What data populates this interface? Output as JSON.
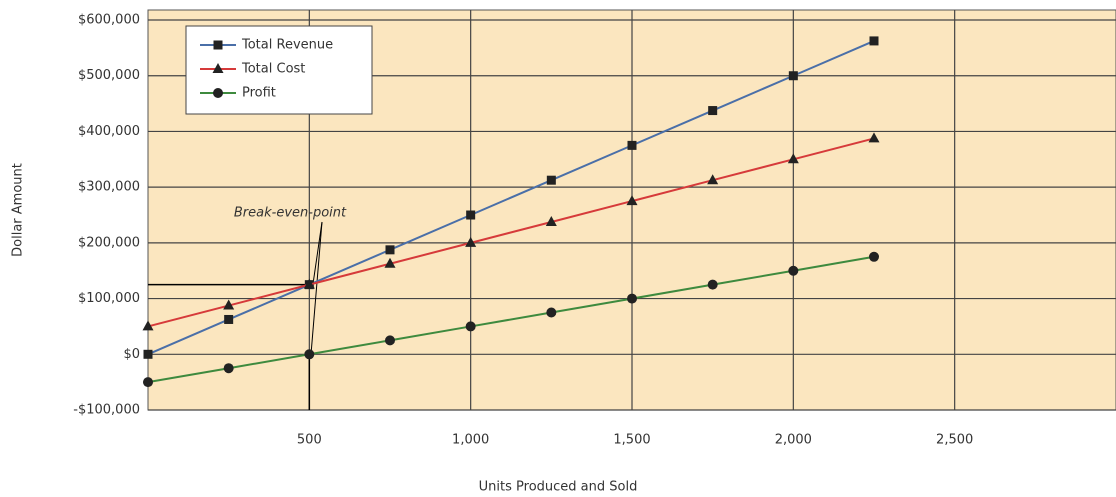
{
  "chart_data": {
    "type": "line",
    "x_label": "Units Produced and Sold",
    "y_label": "Dollar Amount",
    "annotation": "Break-even-point",
    "x": [
      0,
      250,
      500,
      750,
      1000,
      1250,
      1500,
      1750,
      2000,
      2250
    ],
    "series": [
      {
        "name": "Total Revenue",
        "color": "#4a6fa8",
        "marker": "square",
        "values": [
          0,
          62500,
          125000,
          187500,
          250000,
          312500,
          375000,
          437500,
          500000,
          562500
        ]
      },
      {
        "name": "Total Cost",
        "color": "#d63a3a",
        "marker": "triangle",
        "values": [
          50000,
          87500,
          125000,
          162500,
          200000,
          237500,
          275000,
          312500,
          350000,
          387500
        ]
      },
      {
        "name": "Profit",
        "color": "#3e8a3e",
        "marker": "circle",
        "values": [
          -50000,
          -25000,
          0,
          25000,
          50000,
          75000,
          100000,
          125000,
          150000,
          175000
        ]
      }
    ],
    "xlim": [
      0,
      3000
    ],
    "xticks": [
      500,
      {
        "value": 1000,
        "label": "1,000"
      },
      {
        "value": 1500,
        "label": "1,500"
      },
      {
        "value": 2000,
        "label": "2,000"
      },
      {
        "value": 2500,
        "label": "2,500"
      }
    ],
    "ylim": [
      -100000,
      618000
    ],
    "yticks": [
      {
        "value": -100000,
        "label": "-$100,000"
      },
      {
        "value": 0,
        "label": "$0"
      },
      {
        "value": 100000,
        "label": "$100,000"
      },
      {
        "value": 200000,
        "label": "$200,000"
      },
      {
        "value": 300000,
        "label": "$300,000"
      },
      {
        "value": 400000,
        "label": "$400,000"
      },
      {
        "value": 500000,
        "label": "$500,000"
      },
      {
        "value": 600000,
        "label": "$600,000"
      }
    ],
    "grid": true,
    "legend": "upper left"
  }
}
